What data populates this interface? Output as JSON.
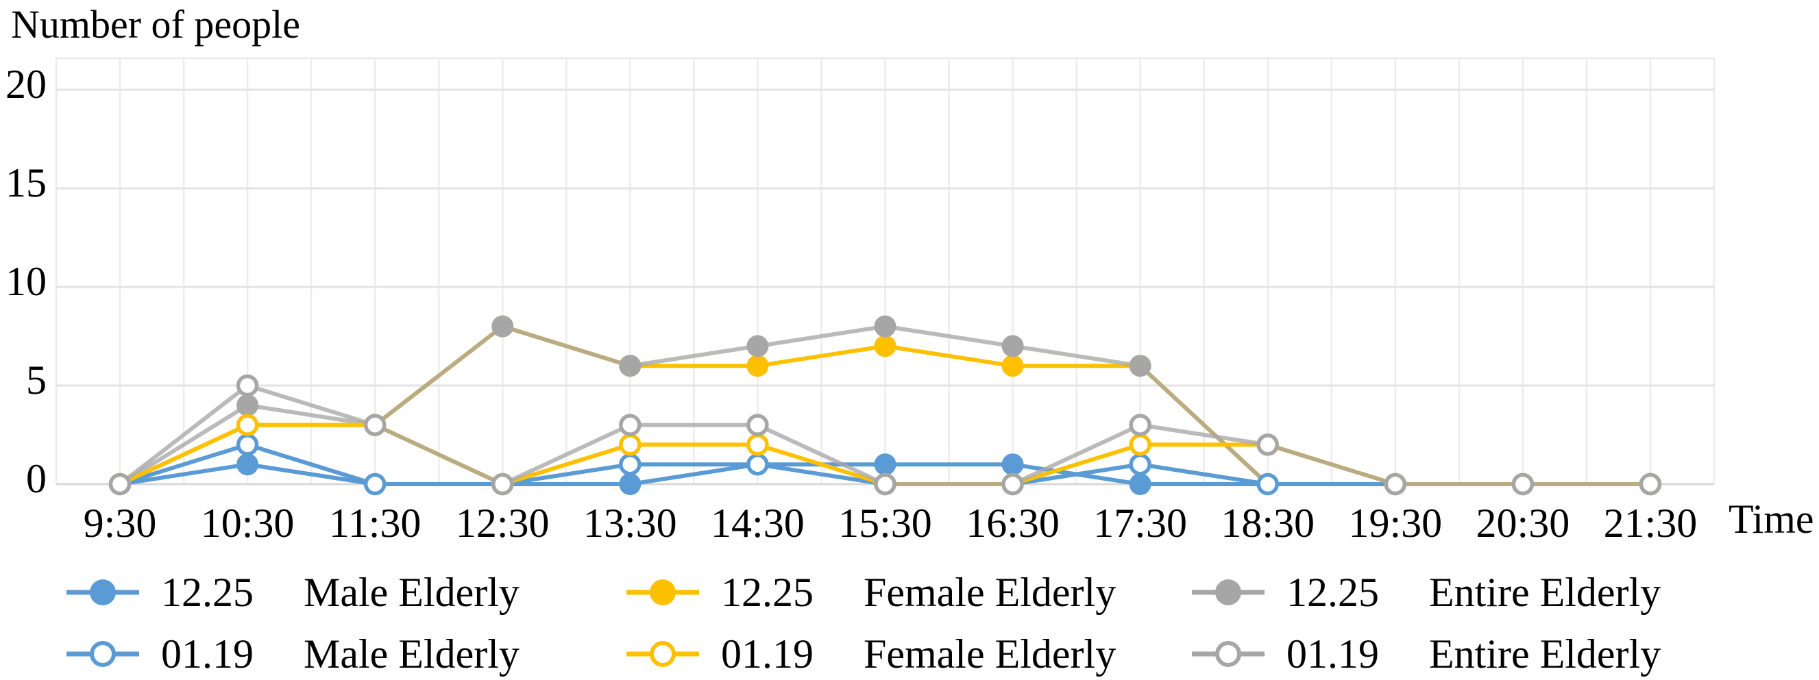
{
  "chart": {
    "y_axis_title": "Number of people",
    "x_axis_title": "Time"
  },
  "chart_data": {
    "type": "line",
    "categories": [
      "9:30",
      "10:30",
      "11:30",
      "12:30",
      "13:30",
      "14:30",
      "15:30",
      "16:30",
      "17:30",
      "18:30",
      "19:30",
      "20:30",
      "21:30"
    ],
    "y_ticks": [
      0,
      5,
      10,
      15,
      20
    ],
    "ylim": [
      0,
      20
    ],
    "grid": true,
    "legend_position": "bottom",
    "series": [
      {
        "id": "male-1225",
        "date": "12.25",
        "name": "Male Elderly",
        "label": "12.25 Male Elderly",
        "marker": "filled",
        "color": "#5B9BD5",
        "values": [
          0,
          1,
          0,
          0,
          0,
          1,
          1,
          1,
          0,
          0,
          0,
          0,
          0
        ]
      },
      {
        "id": "female-1225",
        "date": "12.25",
        "name": "Female Elderly",
        "label": "12.25 Female Elderly",
        "marker": "filled",
        "color": "#FFC000",
        "values": [
          0,
          3,
          3,
          8,
          6,
          6,
          7,
          6,
          6,
          0,
          0,
          0,
          0
        ]
      },
      {
        "id": "entire-1225",
        "date": "12.25",
        "name": "Entire Elderly",
        "label": "12.25 Entire Elderly",
        "marker": "filled",
        "color": "#A6A6A6",
        "values": [
          0,
          4,
          3,
          8,
          6,
          7,
          8,
          7,
          6,
          0,
          0,
          0,
          0
        ]
      },
      {
        "id": "male-0119",
        "date": "01.19",
        "name": "Male Elderly",
        "label": "01.19 Male Elderly",
        "marker": "open",
        "color": "#5B9BD5",
        "values": [
          0,
          2,
          0,
          0,
          1,
          1,
          0,
          0,
          1,
          0,
          0,
          0,
          0
        ]
      },
      {
        "id": "female-0119",
        "date": "01.19",
        "name": "Female Elderly",
        "label": "01.19 Female Elderly",
        "marker": "open",
        "color": "#FFC000",
        "values": [
          0,
          3,
          3,
          0,
          2,
          2,
          0,
          0,
          2,
          2,
          0,
          0,
          0
        ]
      },
      {
        "id": "entire-0119",
        "date": "01.19",
        "name": "Entire Elderly",
        "label": "01.19 Entire Elderly",
        "marker": "open",
        "color": "#A6A6A6",
        "values": [
          0,
          5,
          3,
          0,
          3,
          3,
          0,
          0,
          3,
          2,
          0,
          0,
          0
        ]
      }
    ]
  },
  "colors": {
    "blue": "#5B9BD5",
    "yellow": "#FFC000",
    "gray": "#A6A6A6",
    "grid_minor": "#ECECEC",
    "grid_major": "#E3E3E3",
    "axis_line": "#D8D8D8",
    "background": "#FFFFFF",
    "text": "#000000"
  }
}
